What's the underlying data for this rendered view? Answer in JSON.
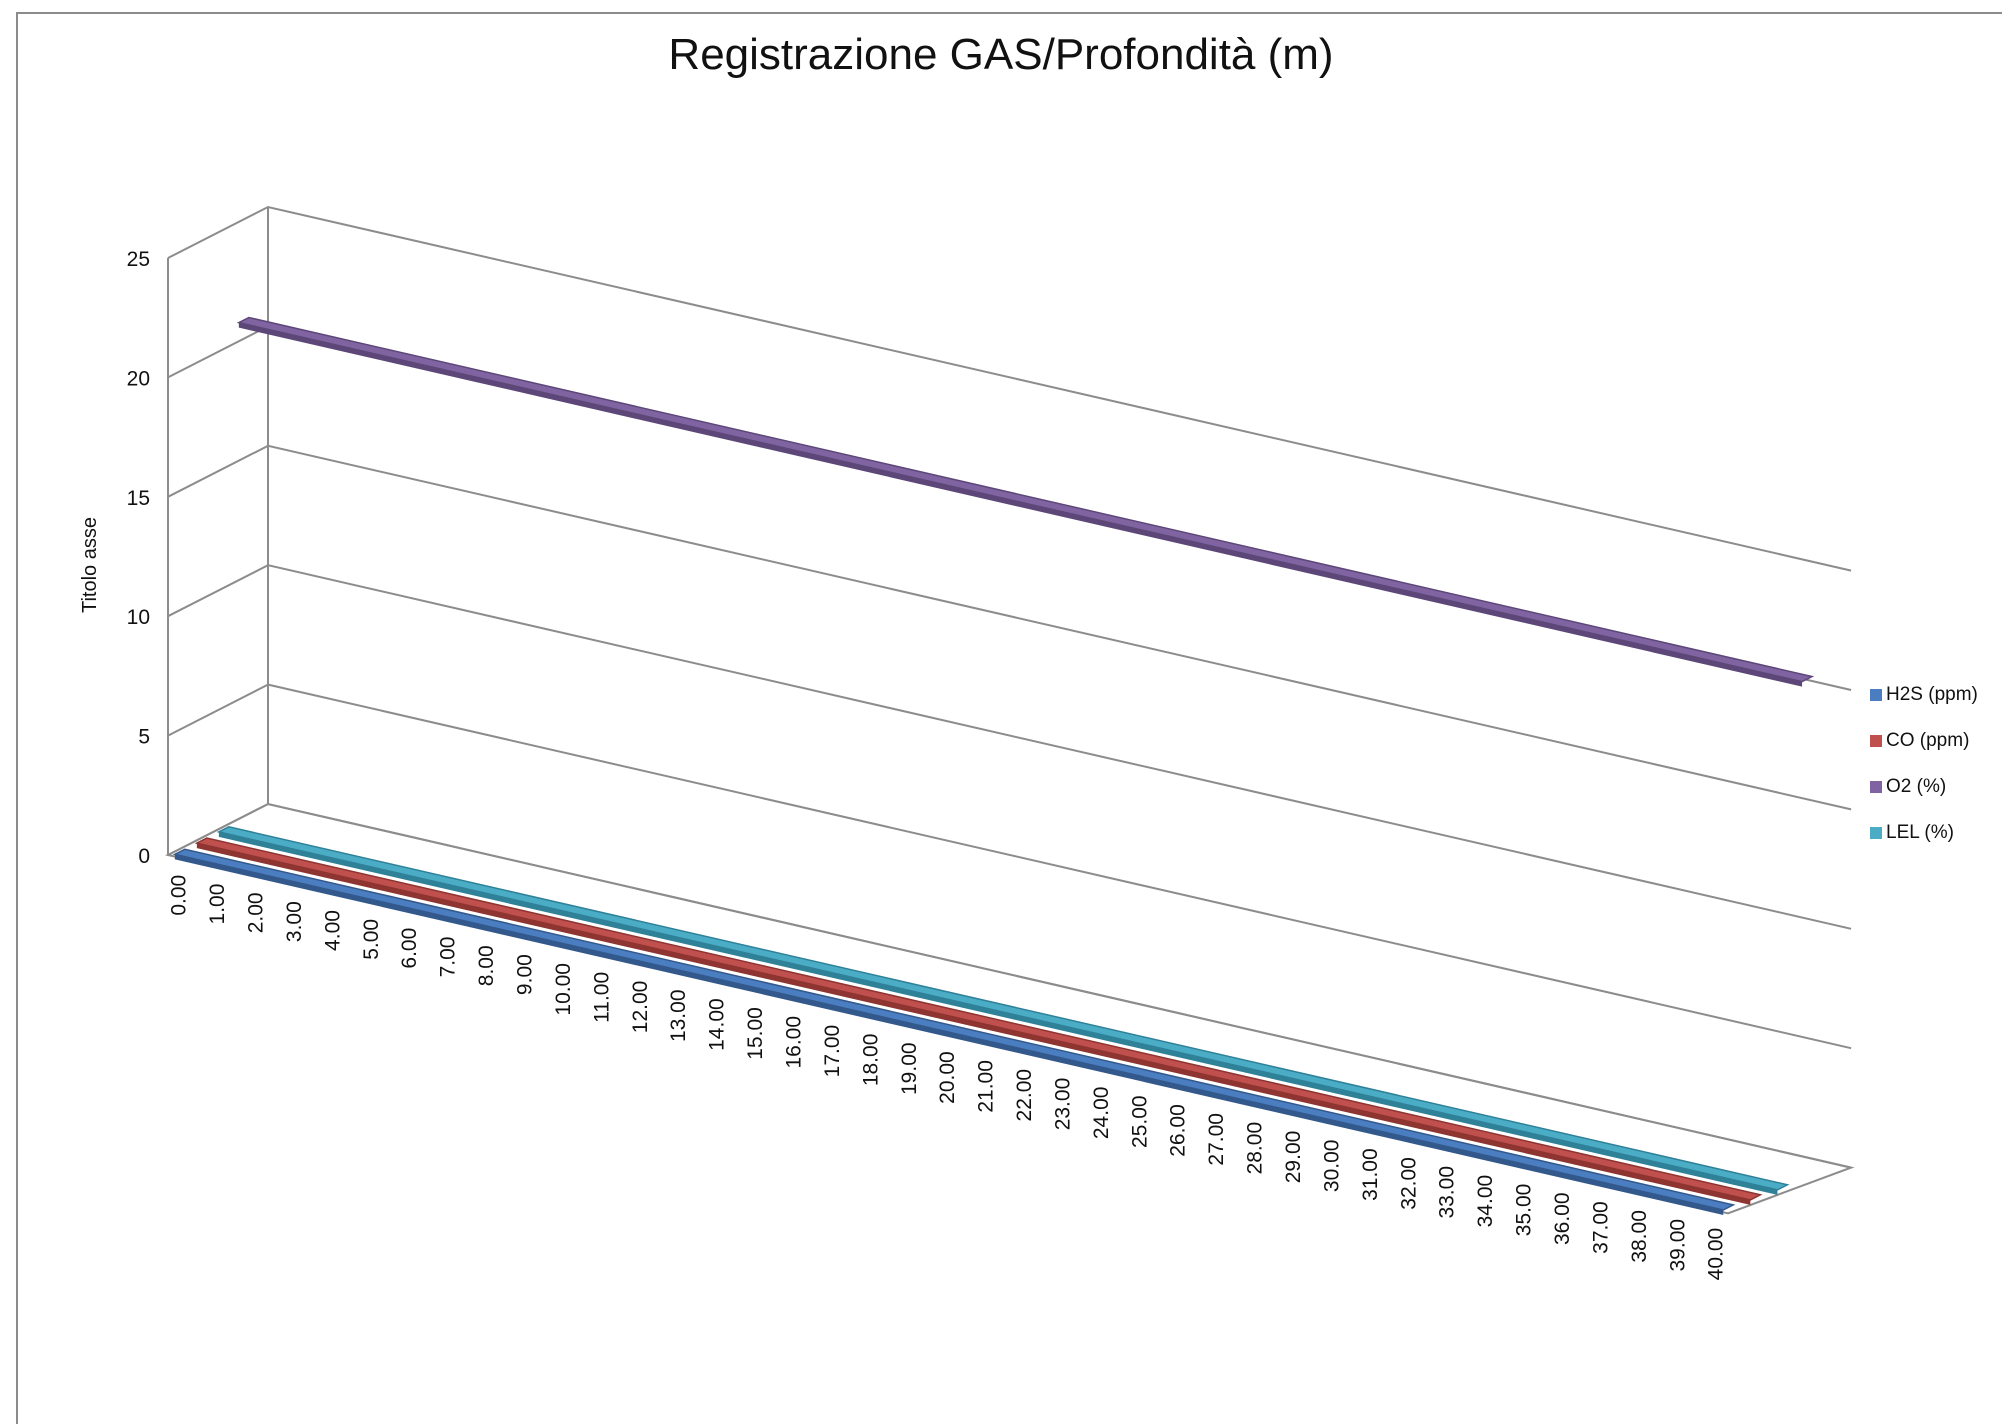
{
  "chart_data": {
    "type": "line",
    "title": "Registrazione GAS/Profondità (m)",
    "ylabel": "Titolo asse",
    "xlabel": "",
    "ylim": [
      0,
      25
    ],
    "yticks": [
      "0",
      "5",
      "10",
      "15",
      "20",
      "25"
    ],
    "categories": [
      "0.00",
      "1.00",
      "2.00",
      "3.00",
      "4.00",
      "5.00",
      "6.00",
      "7.00",
      "8.00",
      "9.00",
      "10.00",
      "11.00",
      "12.00",
      "13.00",
      "14.00",
      "15.00",
      "16.00",
      "17.00",
      "18.00",
      "19.00",
      "20.00",
      "21.00",
      "22.00",
      "23.00",
      "24.00",
      "25.00",
      "26.00",
      "27.00",
      "28.00",
      "29.00",
      "30.00",
      "31.00",
      "32.00",
      "33.00",
      "34.00",
      "35.00",
      "36.00",
      "37.00",
      "38.00",
      "39.00",
      "40.00"
    ],
    "series": [
      {
        "name": "H2S (ppm)",
        "color": "#4a7ec0",
        "dark": "#33598c",
        "value": 0
      },
      {
        "name": "CO (ppm)",
        "color": "#c0504d",
        "dark": "#8e3431",
        "value": 0
      },
      {
        "name": "O2 (%)",
        "color": "#8064a2",
        "dark": "#5d4778",
        "value": 20.9
      },
      {
        "name": "LEL (%)",
        "color": "#4bacc6",
        "dark": "#2f8198",
        "value": 0
      }
    ],
    "legend": "right",
    "grid": true
  }
}
